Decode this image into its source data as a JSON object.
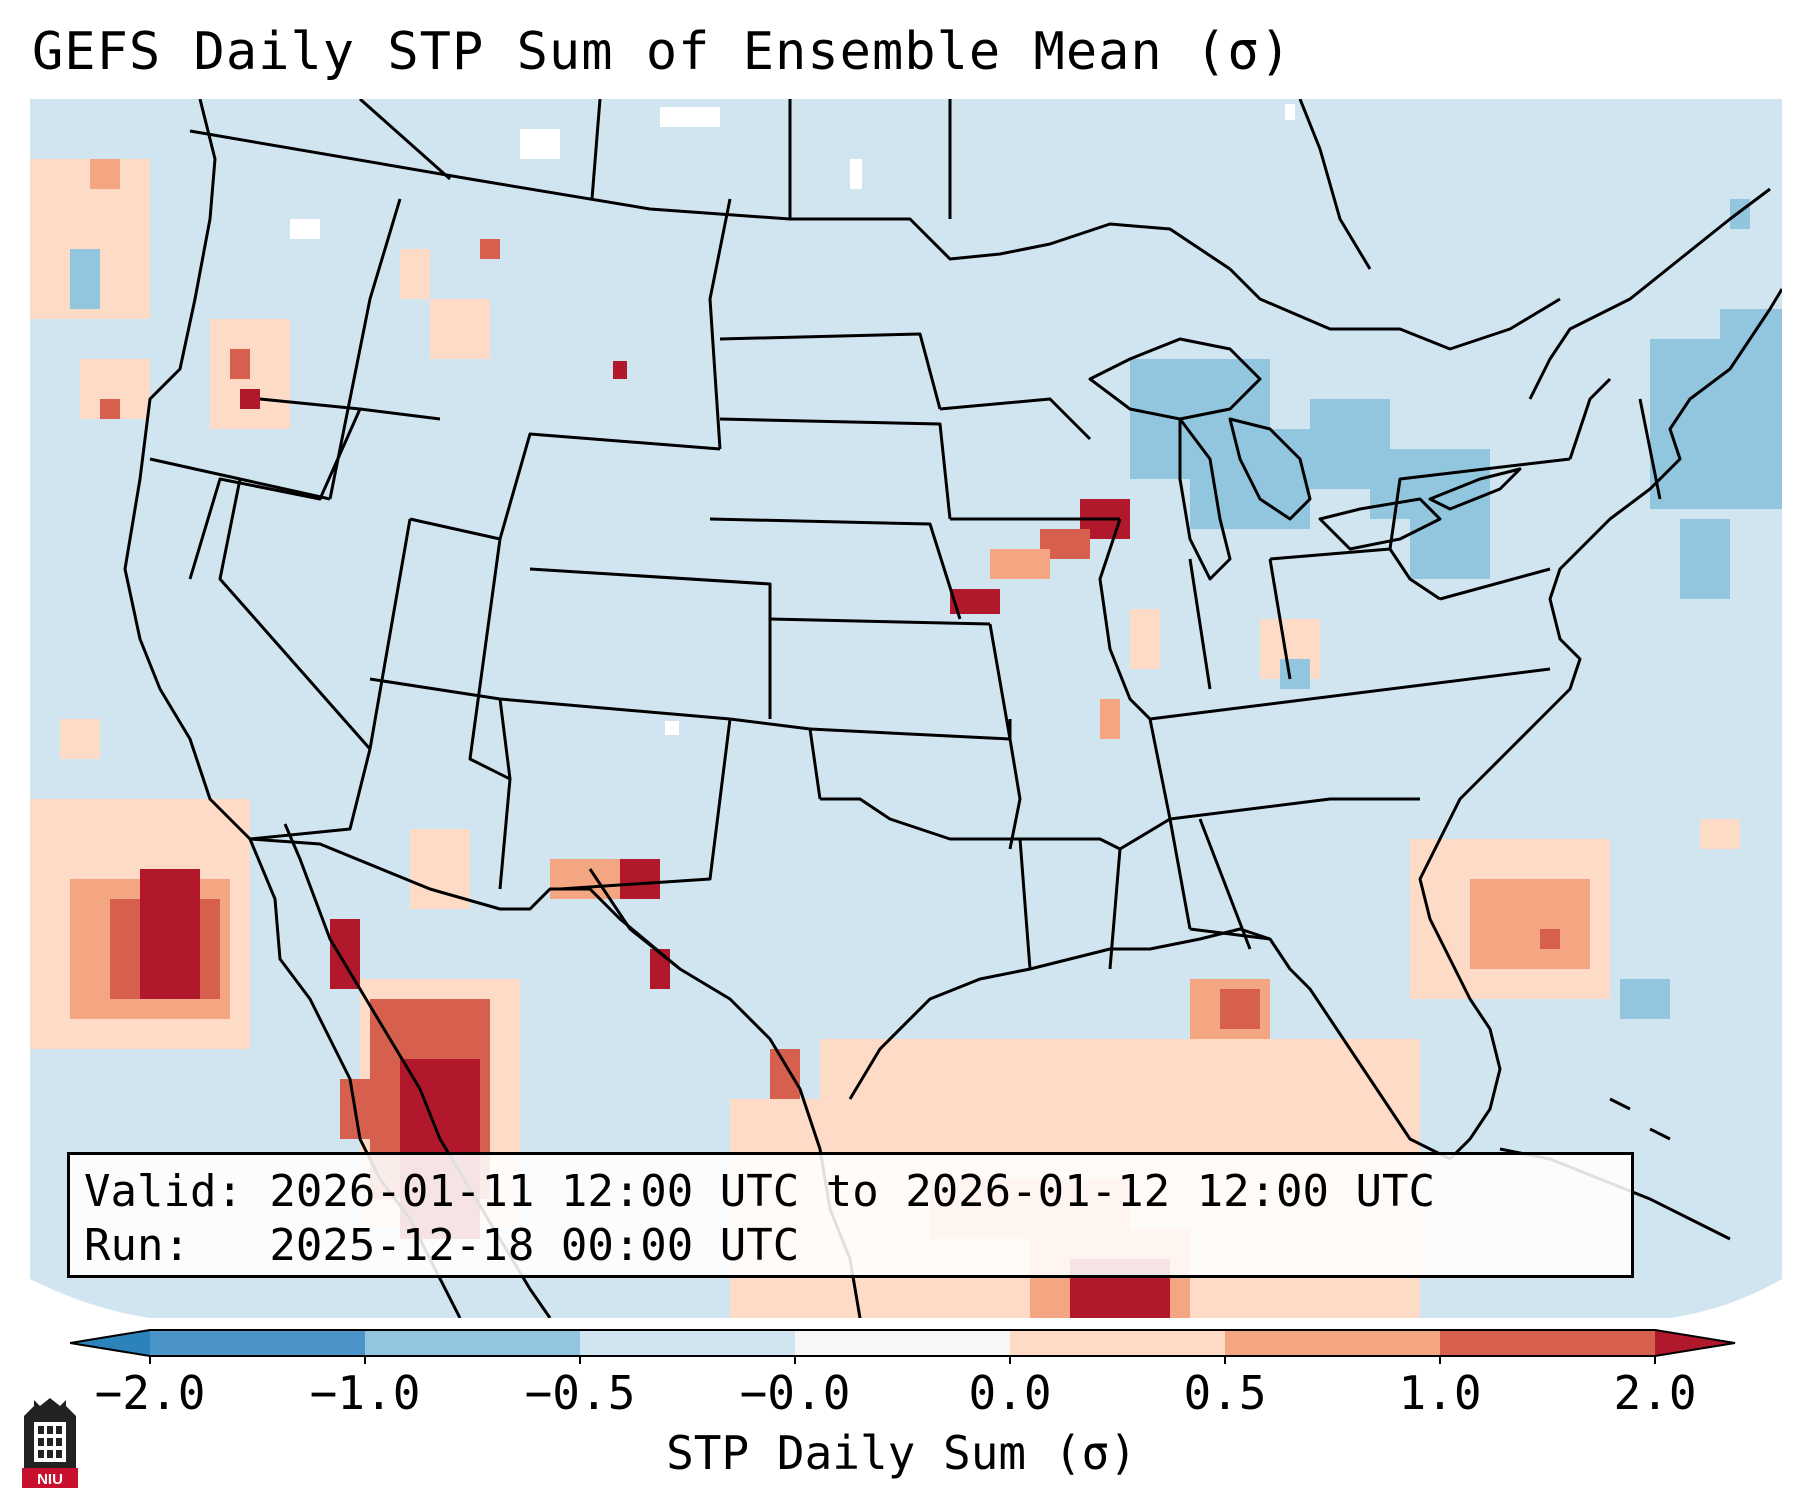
{
  "title": "GEFS Daily STP Sum of Ensemble Mean (σ)",
  "info": {
    "valid_line": "Valid: 2026-01-11 12:00 UTC to 2026-01-12 12:00 UTC",
    "run_line": "Run:   2025-12-18 00:00 UTC"
  },
  "colorbar": {
    "label": "STP Daily Sum (σ)",
    "ticks": [
      "−2.0",
      "−1.0",
      "−0.5",
      "−0.0",
      "0.0",
      "0.5",
      "1.0",
      "2.0"
    ],
    "colors": [
      "#2b83ba",
      "#4a94c9",
      "#92c5de",
      "#d1e5f0",
      "#f7f7f7",
      "#fddbc7",
      "#f4a582",
      "#d6604d",
      "#b2182b"
    ]
  },
  "map": {
    "background_color": "#d1e5f0",
    "features": [
      "coastlines",
      "state-borders",
      "country-borders",
      "great-lakes"
    ]
  },
  "logo": {
    "text": "NIU"
  }
}
